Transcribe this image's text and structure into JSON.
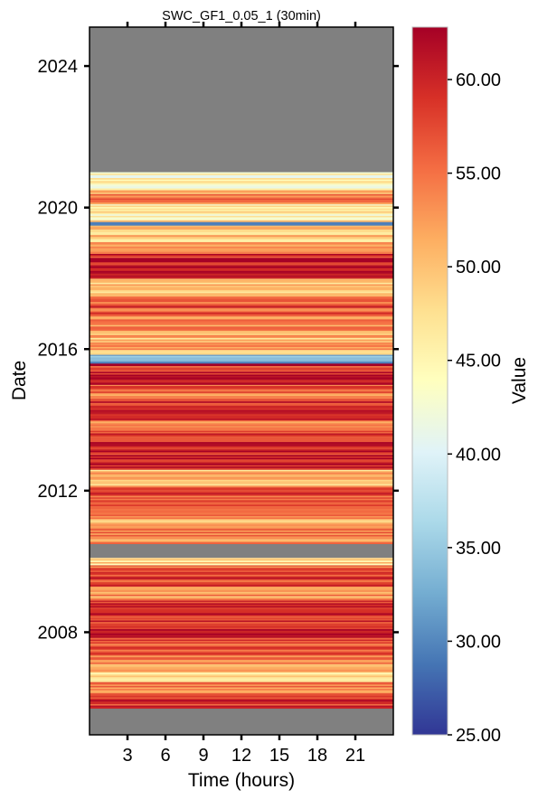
{
  "chart_data": {
    "type": "heatmap",
    "title": "SWC_GF1_0.05_1 (30min)",
    "xlabel": "Time (hours)",
    "ylabel": "Date",
    "colorbar_label": "Value",
    "colormap": "RdYlBu_r",
    "x_range_hours": [
      0,
      24
    ],
    "x_ticks": [
      3,
      6,
      9,
      12,
      15,
      18,
      21
    ],
    "y_range_years": [
      2005.1,
      2025.1
    ],
    "y_ticks": [
      2008,
      2012,
      2016,
      2020,
      2024
    ],
    "color_range": [
      25.0,
      62.8
    ],
    "colorbar_ticks": [
      "25.00",
      "30.00",
      "35.00",
      "40.00",
      "45.00",
      "50.00",
      "55.00",
      "60.00"
    ],
    "missing_color": "#808080",
    "missing_periods": [
      {
        "from": 2005.1,
        "to": 2005.85
      },
      {
        "from": 2005.95,
        "to": 2006.05
      },
      {
        "from": 2010.1,
        "to": 2010.5
      },
      {
        "from": 2021.0,
        "to": 2025.1
      }
    ],
    "band_values": [
      {
        "from": 2005.85,
        "to": 2006.2,
        "value": 58
      },
      {
        "from": 2006.2,
        "to": 2006.6,
        "value": 54
      },
      {
        "from": 2006.6,
        "to": 2006.9,
        "value": 48
      },
      {
        "from": 2006.9,
        "to": 2007.3,
        "value": 53
      },
      {
        "from": 2007.3,
        "to": 2007.8,
        "value": 56
      },
      {
        "from": 2007.8,
        "to": 2008.9,
        "value": 60
      },
      {
        "from": 2008.9,
        "to": 2009.3,
        "value": 52
      },
      {
        "from": 2009.3,
        "to": 2009.9,
        "value": 57
      },
      {
        "from": 2009.9,
        "to": 2010.1,
        "value": 48
      },
      {
        "from": 2010.5,
        "to": 2011.0,
        "value": 54
      },
      {
        "from": 2011.0,
        "to": 2011.4,
        "value": 52
      },
      {
        "from": 2011.4,
        "to": 2012.1,
        "value": 57
      },
      {
        "from": 2012.1,
        "to": 2012.6,
        "value": 50
      },
      {
        "from": 2012.6,
        "to": 2013.7,
        "value": 60
      },
      {
        "from": 2013.7,
        "to": 2014.0,
        "value": 53
      },
      {
        "from": 2014.0,
        "to": 2014.6,
        "value": 60
      },
      {
        "from": 2014.6,
        "to": 2015.0,
        "value": 55
      },
      {
        "from": 2015.0,
        "to": 2015.6,
        "value": 59
      },
      {
        "from": 2015.6,
        "to": 2015.85,
        "value": 33
      },
      {
        "from": 2015.85,
        "to": 2016.4,
        "value": 51
      },
      {
        "from": 2016.4,
        "to": 2017.0,
        "value": 53
      },
      {
        "from": 2017.0,
        "to": 2017.5,
        "value": 57
      },
      {
        "from": 2017.5,
        "to": 2018.0,
        "value": 50
      },
      {
        "from": 2018.0,
        "to": 2018.7,
        "value": 60
      },
      {
        "from": 2018.7,
        "to": 2019.5,
        "value": 50
      },
      {
        "from": 2019.5,
        "to": 2019.6,
        "value": 28
      },
      {
        "from": 2019.6,
        "to": 2020.1,
        "value": 46
      },
      {
        "from": 2020.1,
        "to": 2020.5,
        "value": 53
      },
      {
        "from": 2020.5,
        "to": 2021.0,
        "value": 45
      }
    ]
  }
}
